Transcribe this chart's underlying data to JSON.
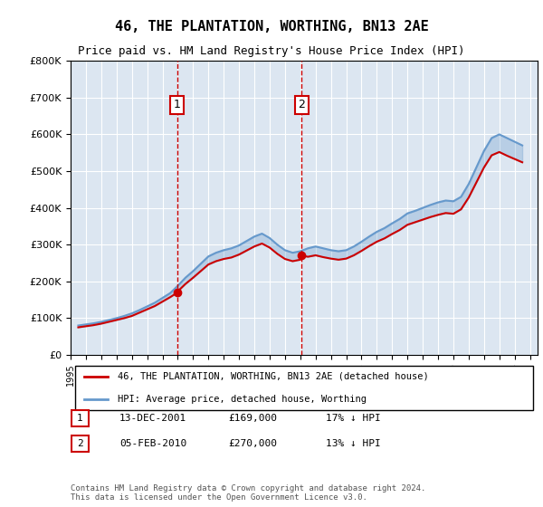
{
  "title": "46, THE PLANTATION, WORTHING, BN13 2AE",
  "subtitle": "Price paid vs. HM Land Registry's House Price Index (HPI)",
  "legend_label_red": "46, THE PLANTATION, WORTHING, BN13 2AE (detached house)",
  "legend_label_blue": "HPI: Average price, detached house, Worthing",
  "annotation1_label": "1",
  "annotation1_date": "13-DEC-2001",
  "annotation1_price": "£169,000",
  "annotation1_hpi": "17% ↓ HPI",
  "annotation2_label": "2",
  "annotation2_date": "05-FEB-2010",
  "annotation2_price": "£270,000",
  "annotation2_hpi": "13% ↓ HPI",
  "footer": "Contains HM Land Registry data © Crown copyright and database right 2024.\nThis data is licensed under the Open Government Licence v3.0.",
  "red_color": "#cc0000",
  "blue_color": "#6699cc",
  "background_color": "#dce6f1",
  "marker1_x": 2001.958,
  "marker1_y": 169000,
  "marker2_x": 2010.1,
  "marker2_y": 270000,
  "vline1_x": 2001.958,
  "vline2_x": 2010.1,
  "ylim": [
    0,
    800000
  ],
  "xlim_start": 1995,
  "xlim_end": 2025.5
}
